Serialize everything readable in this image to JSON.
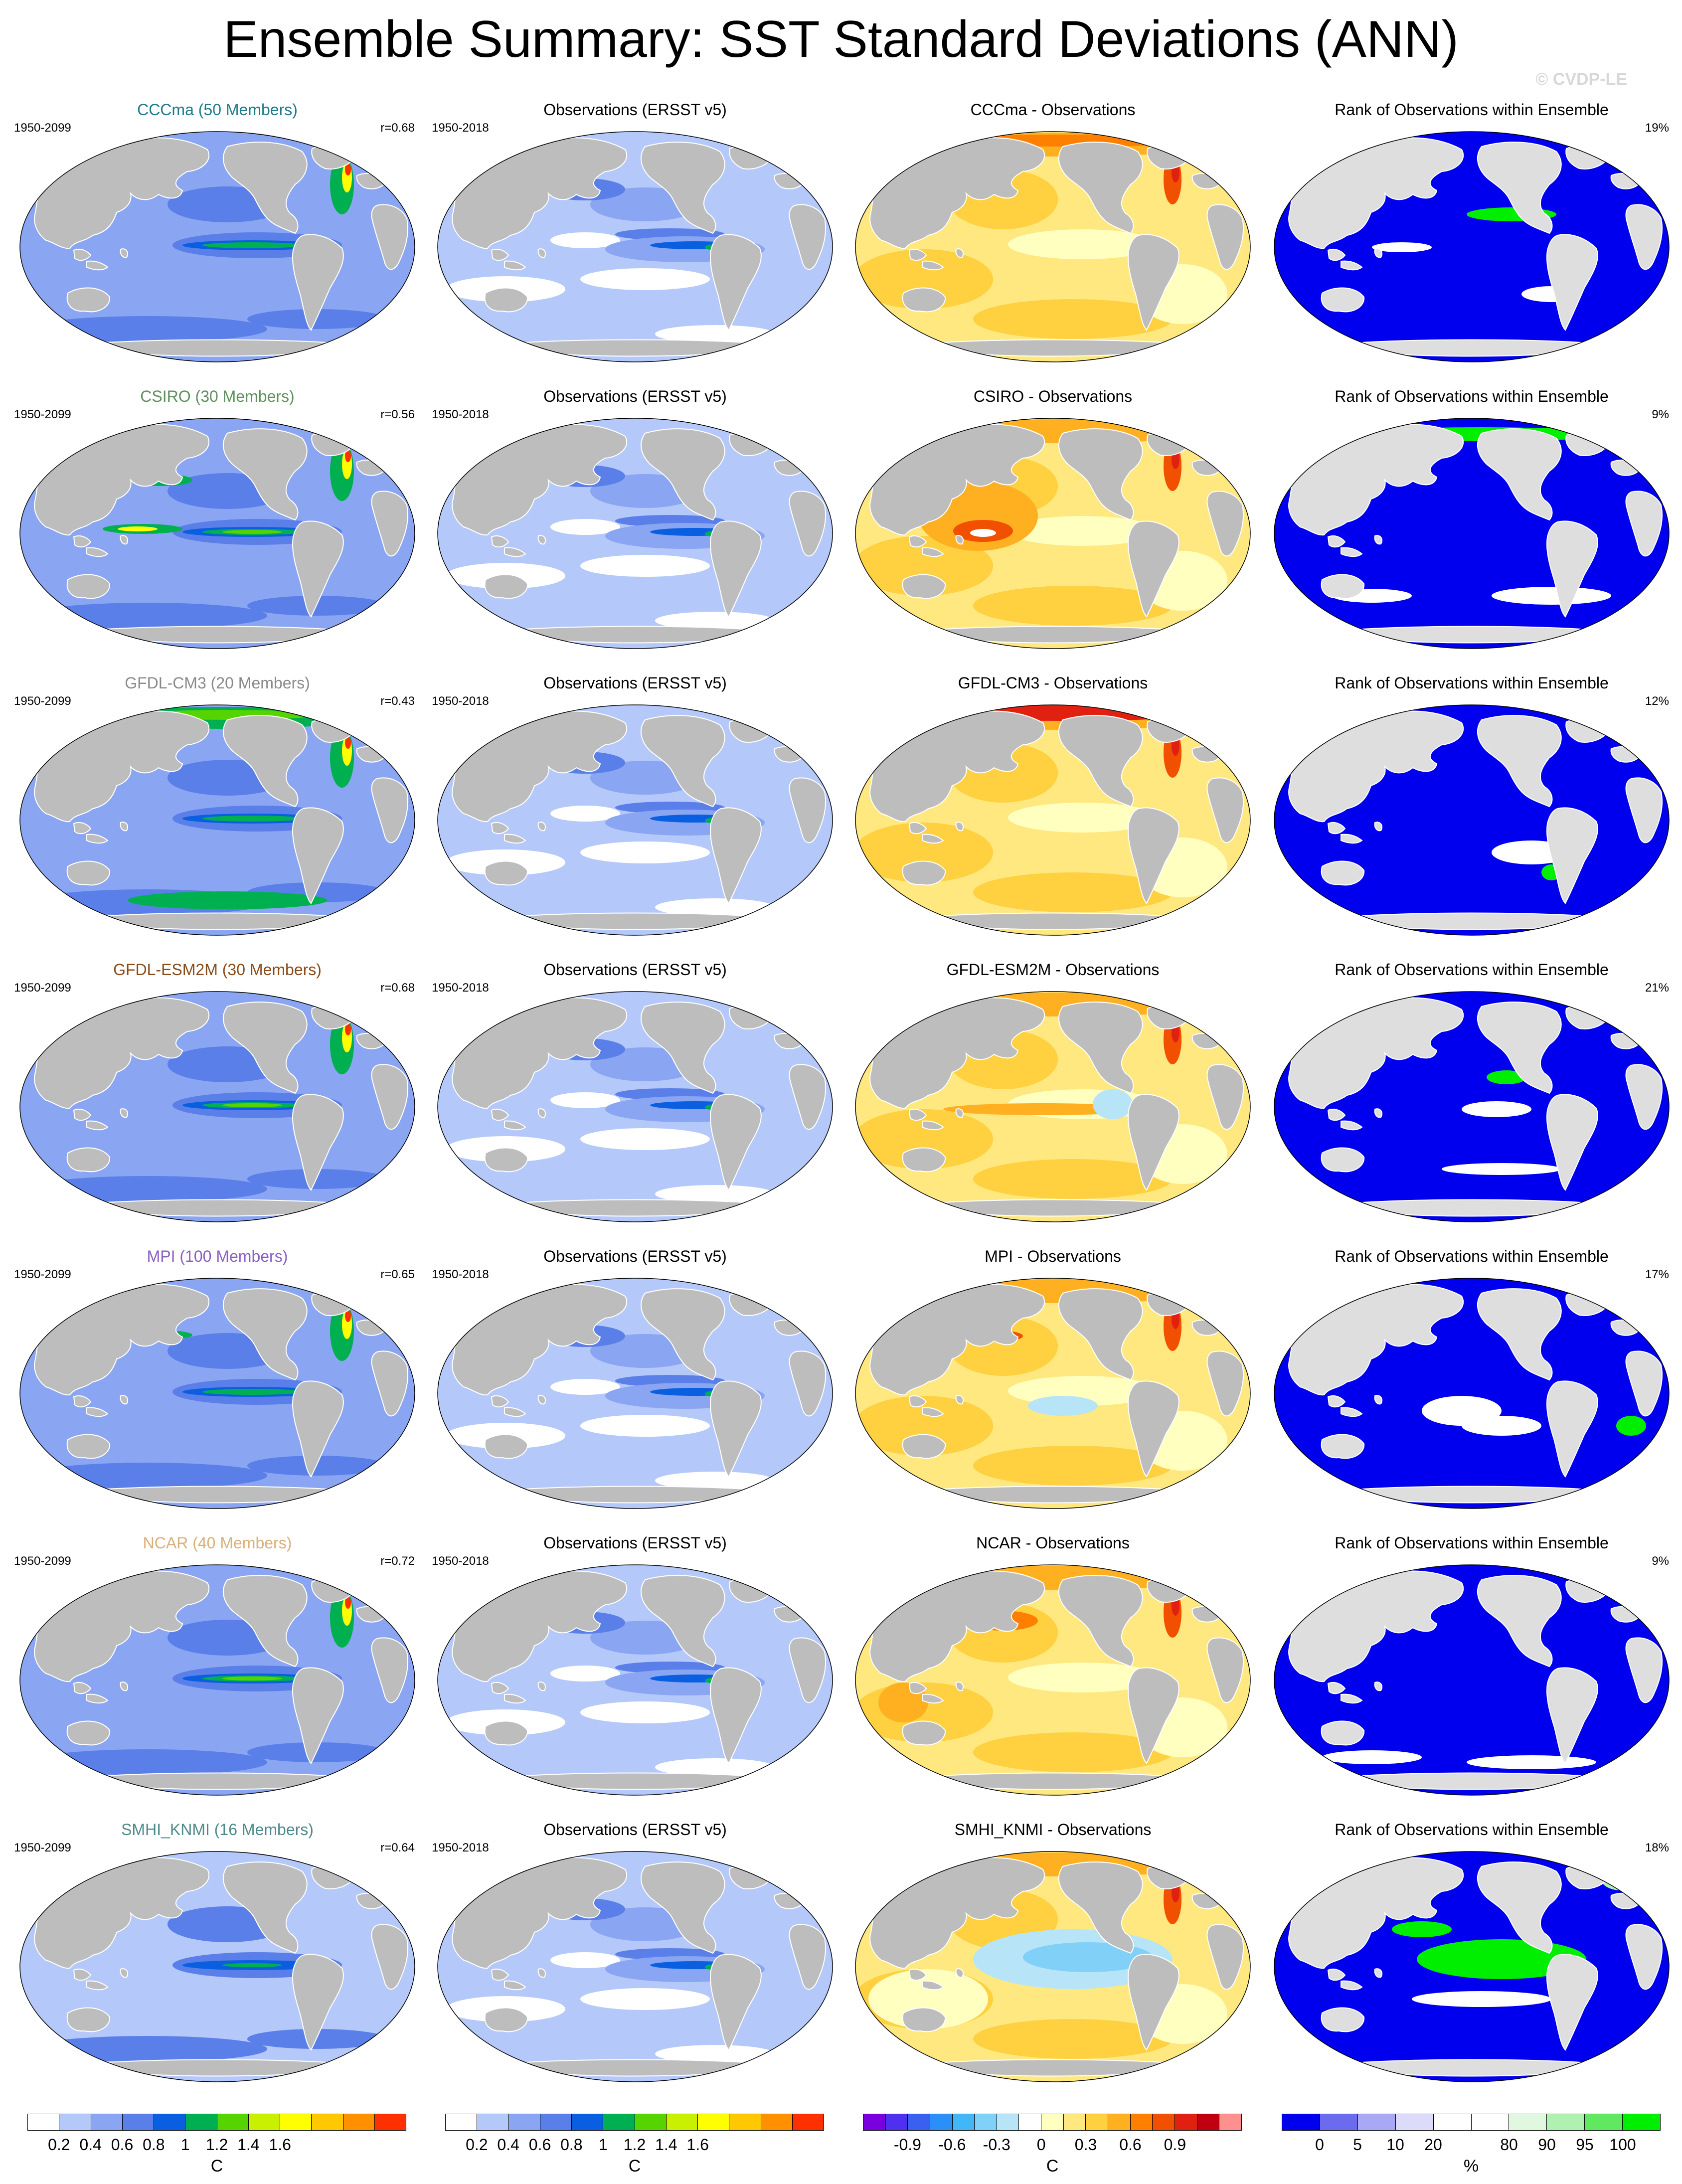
{
  "title": "Ensemble Summary: SST Standard Deviations (ANN)",
  "copyright": "© CVDP-LE",
  "colors": {
    "land_dark": "#bdbdbd",
    "land_light": "#dedede",
    "rank_blue": "#0000ee",
    "rank_green": "#00ee00",
    "coast": "#ffffff"
  },
  "rows": [
    {
      "model_title": "CCCma (50 Members)",
      "model_color": "#1f7a8c",
      "model_period": "1950-2099",
      "pattern_corr": "r=0.68",
      "obs_title": "Observations (ERSST v5)",
      "obs_period": "1950-2018",
      "diff_title": "CCCma - Observations",
      "rank_title": "Rank of Observations within Ensemble",
      "rank_pct": "19%"
    },
    {
      "model_title": "CSIRO (30 Members)",
      "model_color": "#5f8f5f",
      "model_period": "1950-2099",
      "pattern_corr": "r=0.56",
      "obs_title": "Observations (ERSST v5)",
      "obs_period": "1950-2018",
      "diff_title": "CSIRO - Observations",
      "rank_title": "Rank of Observations within Ensemble",
      "rank_pct": "9%"
    },
    {
      "model_title": "GFDL-CM3 (20 Members)",
      "model_color": "#8a8a8a",
      "model_period": "1950-2099",
      "pattern_corr": "r=0.43",
      "obs_title": "Observations (ERSST v5)",
      "obs_period": "1950-2018",
      "diff_title": "GFDL-CM3 - Observations",
      "rank_title": "Rank of Observations within Ensemble",
      "rank_pct": "12%"
    },
    {
      "model_title": "GFDL-ESM2M (30 Members)",
      "model_color": "#8b4a1a",
      "model_period": "1950-2099",
      "pattern_corr": "r=0.68",
      "obs_title": "Observations (ERSST v5)",
      "obs_period": "1950-2018",
      "diff_title": "GFDL-ESM2M - Observations",
      "rank_title": "Rank of Observations within Ensemble",
      "rank_pct": "21%"
    },
    {
      "model_title": "MPI (100 Members)",
      "model_color": "#8a5fc4",
      "model_period": "1950-2099",
      "pattern_corr": "r=0.65",
      "obs_title": "Observations (ERSST v5)",
      "obs_period": "1950-2018",
      "diff_title": "MPI - Observations",
      "rank_title": "Rank of Observations within Ensemble",
      "rank_pct": "17%"
    },
    {
      "model_title": "NCAR (40 Members)",
      "model_color": "#d8b07a",
      "model_period": "1950-2099",
      "pattern_corr": "r=0.72",
      "obs_title": "Observations (ERSST v5)",
      "obs_period": "1950-2018",
      "diff_title": "NCAR - Observations",
      "rank_title": "Rank of Observations within Ensemble",
      "rank_pct": "9%"
    },
    {
      "model_title": "SMHI_KNMI (16 Members)",
      "model_color": "#4f8a8a",
      "model_period": "1950-2099",
      "pattern_corr": "r=0.64",
      "obs_title": "Observations (ERSST v5)",
      "obs_period": "1950-2018",
      "diff_title": "SMHI_KNMI - Observations",
      "rank_title": "Rank of Observations within Ensemble",
      "rank_pct": "18%"
    }
  ],
  "colorbars": [
    {
      "unit": "C",
      "colors": [
        "#ffffff",
        "#b4c8fa",
        "#8aa6f2",
        "#5a7fe8",
        "#0a5fe0",
        "#00b050",
        "#55d400",
        "#c8f000",
        "#ffff00",
        "#ffc800",
        "#ff9000",
        "#ff3000"
      ],
      "ticks": [
        "0.2",
        "0.4",
        "0.6",
        "0.8",
        "1",
        "1.2",
        "1.4",
        "1.6"
      ]
    },
    {
      "unit": "C",
      "colors": [
        "#ffffff",
        "#b4c8fa",
        "#8aa6f2",
        "#5a7fe8",
        "#0a5fe0",
        "#00b050",
        "#55d400",
        "#c8f000",
        "#ffff00",
        "#ffc800",
        "#ff9000",
        "#ff3000"
      ],
      "ticks": [
        "0.2",
        "0.4",
        "0.6",
        "0.8",
        "1",
        "1.2",
        "1.4",
        "1.6"
      ]
    },
    {
      "unit": "C",
      "colors": [
        "#7a00e0",
        "#5030f0",
        "#3a60f0",
        "#2a90f8",
        "#40b8f8",
        "#80d0f8",
        "#b8e4f8",
        "#ffffff",
        "#ffffc0",
        "#ffe880",
        "#ffd040",
        "#ffb020",
        "#ff8000",
        "#f05000",
        "#e02010",
        "#c00010",
        "#ff9090"
      ],
      "ticks": [
        "-0.9",
        "-0.6",
        "-0.3",
        "0",
        "0.3",
        "0.6",
        "0.9"
      ]
    },
    {
      "unit": "%",
      "colors": [
        "#0000ee",
        "#6b6bf0",
        "#a8a8f4",
        "#dcdcfa",
        "#ffffff",
        "#ffffff",
        "#e0f8e0",
        "#b0f0b0",
        "#60e860",
        "#00ee00"
      ],
      "ticks": [
        "0",
        "5",
        "10",
        "20",
        "80",
        "90",
        "95",
        "100"
      ]
    }
  ]
}
